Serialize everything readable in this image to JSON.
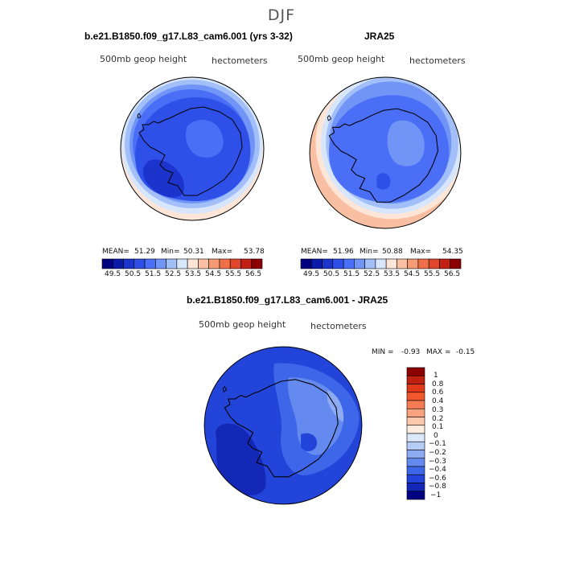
{
  "season": "DJF",
  "panels": [
    {
      "title": "b.e21.B1850.f09_g17.L83_cam6.001 (yrs 3-32)",
      "field_label": "500mb geop height",
      "units_label": "hectometers",
      "stats": {
        "mean_label": "MEAN=",
        "mean": "51.29",
        "min_label": "Min=",
        "min": "50.31",
        "max_label": "Max=",
        "max": "53.78"
      }
    },
    {
      "title": "JRA25",
      "field_label": "500mb geop height",
      "units_label": "hectometers",
      "stats": {
        "mean_label": "MEAN=",
        "mean": "51.96",
        "min_label": "Min=",
        "min": "50.88",
        "max_label": "Max=",
        "max": "54.35"
      }
    },
    {
      "title": "b.e21.B1850.f09_g17.L83_cam6.001 - JRA25",
      "field_label": "500mb geop height",
      "units_label": "hectometers",
      "stats": {
        "min_label": "MIN =",
        "min": "-0.93",
        "max_label": "MAX =",
        "max": "-0.15"
      }
    }
  ],
  "colorbar_top": {
    "colors": [
      "#000080",
      "#0a1aa8",
      "#1c33cc",
      "#2e4fe8",
      "#4a6ef5",
      "#7194f7",
      "#a3bff9",
      "#d8e6fc",
      "#fde6d8",
      "#f9bfa3",
      "#f59a75",
      "#ef7048",
      "#e0462a",
      "#c22014",
      "#8b0000"
    ],
    "tick_labels": [
      "49.5",
      "50.5",
      "51.5",
      "52.5",
      "53.5",
      "54.5",
      "55.5",
      "56.5"
    ]
  },
  "colorbar_diff": {
    "colors": [
      "#8b0000",
      "#c02010",
      "#e03a1a",
      "#f0582c",
      "#f57c55",
      "#f8a27f",
      "#fbc7ad",
      "#feece0",
      "#dde9fb",
      "#b5ccf7",
      "#8dabf3",
      "#648aef",
      "#3e66e8",
      "#2344d8",
      "#1428b8",
      "#000080"
    ],
    "tick_labels": [
      "1",
      "0.8",
      "0.6",
      "0.4",
      "0.3",
      "0.2",
      "0.1",
      "0",
      "−0.1",
      "−0.2",
      "−0.3",
      "−0.4",
      "−0.6",
      "−0.8",
      "−1"
    ]
  },
  "chart_data": [
    {
      "type": "heatmap",
      "projection": "south-polar-stereographic",
      "title": "b.e21.B1850.f09_g17.L83_cam6.001 (yrs 3-32)",
      "variable": "500mb geop height",
      "units": "hectometers",
      "contour_levels": [
        49.5,
        50,
        50.5,
        51,
        51.5,
        52,
        52.5,
        53,
        53.5,
        54,
        54.5,
        55,
        55.5,
        56,
        56.5
      ],
      "mean": 51.29,
      "min": 50.31,
      "max": 53.78
    },
    {
      "type": "heatmap",
      "projection": "south-polar-stereographic",
      "title": "JRA25",
      "variable": "500mb geop height",
      "units": "hectometers",
      "contour_levels": [
        49.5,
        50,
        50.5,
        51,
        51.5,
        52,
        52.5,
        53,
        53.5,
        54,
        54.5,
        55,
        55.5,
        56,
        56.5
      ],
      "mean": 51.96,
      "min": 50.88,
      "max": 54.35
    },
    {
      "type": "heatmap",
      "projection": "south-polar-stereographic",
      "title": "b.e21.B1850.f09_g17.L83_cam6.001 - JRA25",
      "variable": "500mb geop height",
      "units": "hectometers",
      "contour_levels": [
        -1,
        -0.8,
        -0.6,
        -0.4,
        -0.3,
        -0.2,
        -0.1,
        0,
        0.1,
        0.2,
        0.3,
        0.4,
        0.6,
        0.8,
        1
      ],
      "min": -0.93,
      "max": -0.15
    }
  ]
}
